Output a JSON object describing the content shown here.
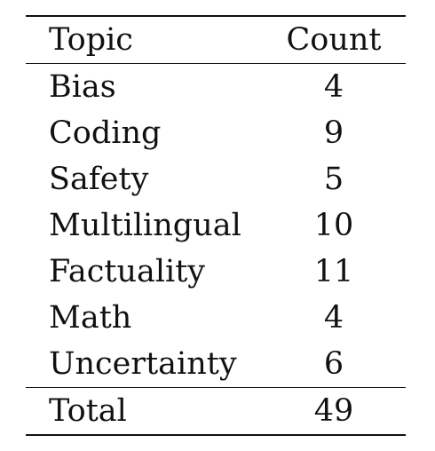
{
  "table": {
    "columns": [
      "Topic",
      "Count"
    ],
    "rows": [
      {
        "topic": "Bias",
        "count": "4"
      },
      {
        "topic": "Coding",
        "count": "9"
      },
      {
        "topic": "Safety",
        "count": "5"
      },
      {
        "topic": "Multilingual",
        "count": "10"
      },
      {
        "topic": "Factuality",
        "count": "11"
      },
      {
        "topic": "Math",
        "count": "4"
      },
      {
        "topic": "Uncertainty",
        "count": "6"
      }
    ],
    "total": {
      "label": "Total",
      "count": "49"
    }
  }
}
